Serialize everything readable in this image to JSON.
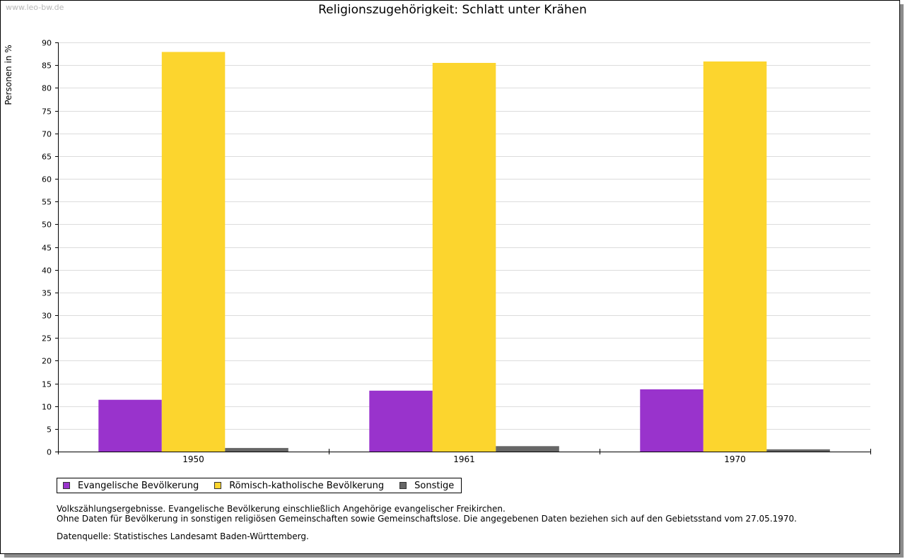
{
  "watermark": "www.leo-bw.de",
  "chart_data": {
    "type": "bar",
    "title": "Religionszugehörigkeit: Schlatt unter Krähen",
    "ylabel": "Personen in %",
    "xlabel": "",
    "ylim": [
      0,
      90
    ],
    "yticks": [
      0,
      5,
      10,
      15,
      20,
      25,
      30,
      35,
      40,
      45,
      50,
      55,
      60,
      65,
      70,
      75,
      80,
      85,
      90
    ],
    "categories": [
      "1950",
      "1961",
      "1970"
    ],
    "grid": true,
    "legend_position": "bottom-left",
    "series": [
      {
        "name": "Evangelische Bevölkerung",
        "color": "#9933cc",
        "values": [
          11.4,
          13.4,
          13.7
        ]
      },
      {
        "name": "Römisch-katholische Bevölkerung",
        "color": "#fcd52e",
        "values": [
          87.9,
          85.5,
          85.8
        ]
      },
      {
        "name": "Sonstige",
        "color": "#666666",
        "values": [
          0.8,
          1.2,
          0.5
        ]
      }
    ]
  },
  "notes": {
    "line1": "Volkszählungsergebnisse. Evangelische Bevölkerung einschließlich Angehörige evangelischer Freikirchen.",
    "line2": "Ohne Daten für Bevölkerung in sonstigen religiösen Gemeinschaften sowie Gemeinschaftslose. Die angegebenen Daten beziehen sich auf den Gebietsstand vom 27.05.1970.",
    "source": "Datenquelle: Statistisches Landesamt Baden-Württemberg."
  }
}
